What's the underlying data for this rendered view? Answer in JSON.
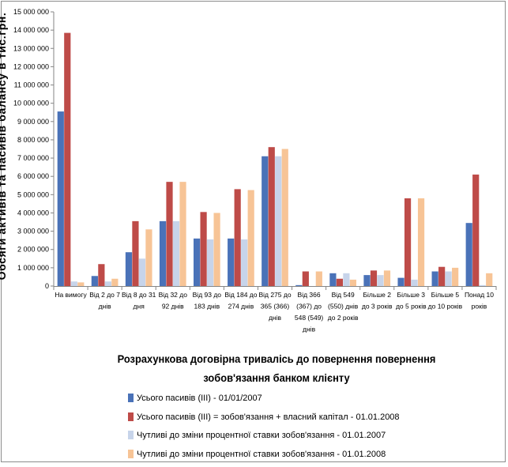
{
  "chart_data": {
    "type": "bar",
    "title": "Розрахункова договірна тривалісь до повернення повернення зобов'язання банком клієнту",
    "ylabel": "Обсяги активів та пасивів балансу в тис.грн.",
    "xlabel": "Розрахункова договірна тривалісь до повернення повернення зобов'язання банком клієнту",
    "ylim": [
      0,
      15000000
    ],
    "yticks": [
      "0",
      "1 000 000",
      "2 000 000",
      "3 000 000",
      "4 000 000",
      "5 000 000",
      "6 000 000",
      "7 000 000",
      "8 000 000",
      "9 000 000",
      "10 000 000",
      "11 000 000",
      "12 000 000",
      "13 000 000",
      "14 000 000",
      "15 000 000"
    ],
    "categories": [
      [
        "На вимогу"
      ],
      [
        "Від 2 до 7",
        "днів"
      ],
      [
        "Від 8 до 31",
        "дня"
      ],
      [
        "Від 32 до",
        "92 днів"
      ],
      [
        "Від 93 до",
        "183 днів"
      ],
      [
        "Від 184 до",
        "274 днів"
      ],
      [
        "Від 275 до",
        "365 (366)",
        "днів"
      ],
      [
        "Від 366",
        "(367) до",
        "548 (549)",
        "днів"
      ],
      [
        "Від 549",
        "(550) днів",
        "до 2 років"
      ],
      [
        "Більше 2",
        "до 3 років"
      ],
      [
        "Більше 3",
        "до 5 років"
      ],
      [
        "Більше 5",
        "до 10 років"
      ],
      [
        "Понад 10",
        "років"
      ]
    ],
    "series": [
      {
        "name": "Усього пасивів (ІІІ)  - 01/01/2007",
        "color": "#4a72b8",
        "values": [
          9550000,
          550000,
          1850000,
          3550000,
          2600000,
          2600000,
          7100000,
          50000,
          700000,
          600000,
          450000,
          800000,
          3450000
        ]
      },
      {
        "name": "Усього пасивів (ІІІ) = зобов'язання + власний капітал      - 01.01.2008",
        "color": "#be4b48",
        "values": [
          13850000,
          1200000,
          3550000,
          5700000,
          4050000,
          5300000,
          7600000,
          800000,
          400000,
          850000,
          4800000,
          1050000,
          6100000
        ]
      },
      {
        "name": "Чутливі до зміни  процентної ставки  зобов'язання    - 01.01.2007",
        "color": "#c7d4ea",
        "values": [
          250000,
          250000,
          1500000,
          3550000,
          2550000,
          2550000,
          7100000,
          0,
          700000,
          600000,
          350000,
          800000,
          50000
        ]
      },
      {
        "name": "Чутливі до зміни  процентної ставки  зобов'язання    - 01.01.2008",
        "color": "#f7c496",
        "values": [
          200000,
          400000,
          3100000,
          5700000,
          4000000,
          5250000,
          7500000,
          800000,
          350000,
          850000,
          4800000,
          1000000,
          700000
        ]
      }
    ]
  }
}
